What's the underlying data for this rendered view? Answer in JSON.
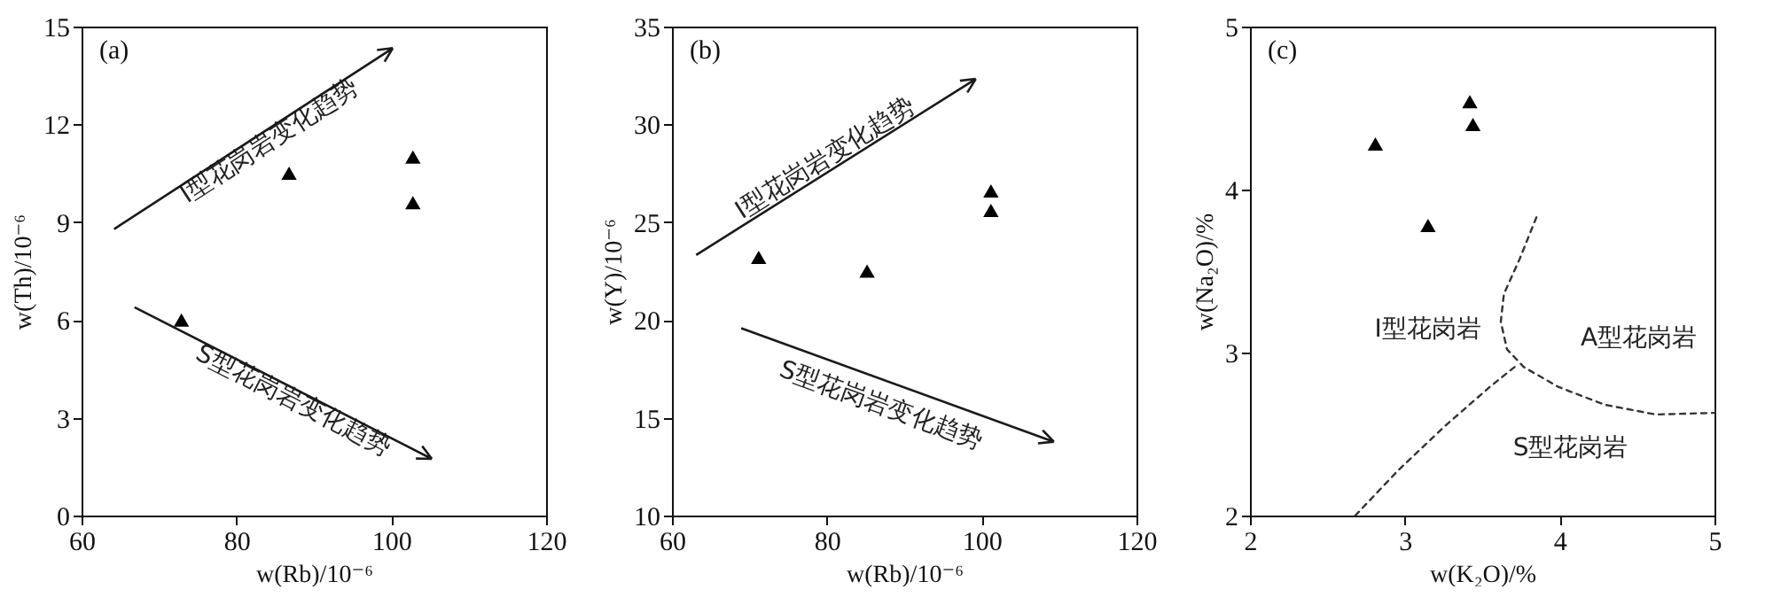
{
  "chart_data": [
    {
      "type": "scatter",
      "marker": "triangle",
      "xlabel": "w(Rb)/10⁻⁶",
      "ylabel": "w(Th)/10⁻⁶",
      "xlim": [
        60,
        120
      ],
      "ylim": [
        0,
        15
      ],
      "xticks": [
        60,
        80,
        100,
        120
      ],
      "yticks": [
        0,
        3,
        6,
        9,
        12,
        15
      ],
      "annotations": [
        "(a)",
        "I型花岗岩变化趋势",
        "S型花岗岩变化趋势"
      ],
      "series": [
        {
          "color": "#000000",
          "x": [
            72.9,
            86.8,
            102.8,
            102.8
          ],
          "values": [
            6.0,
            10.5,
            11.0,
            9.6
          ]
        }
      ]
    },
    {
      "type": "scatter",
      "marker": "triangle",
      "xlabel": "w(Rb)/10⁻⁶",
      "ylabel": "w(Y)/10⁻⁶",
      "xlim": [
        60,
        120
      ],
      "ylim": [
        10,
        35
      ],
      "xticks": [
        60,
        80,
        100,
        120
      ],
      "yticks": [
        10,
        15,
        20,
        25,
        30,
        35
      ],
      "annotations": [
        "(b)",
        "I型花岗岩变化趋势",
        "S型花岗岩变化趋势"
      ],
      "series": [
        {
          "color": "#000000",
          "x": [
            71.2,
            85.2,
            101.2,
            101.2
          ],
          "values": [
            23.2,
            22.5,
            26.6,
            25.6
          ]
        }
      ]
    },
    {
      "type": "scatter",
      "marker": "triangle",
      "xlabel": "w(K₂O)/%",
      "ylabel": "w(Na₂O)/%",
      "xlim": [
        2,
        5
      ],
      "ylim": [
        2,
        5
      ],
      "xticks": [
        2,
        3,
        4,
        5
      ],
      "yticks": [
        2,
        3,
        4,
        5
      ],
      "annotations": [
        "(c)",
        "I型花岗岩",
        "A型花岗岩",
        "S型花岗岩"
      ],
      "series": [
        {
          "color": "#000000",
          "x": [
            2.81,
            3.42,
            3.44,
            3.15
          ],
          "values": [
            4.28,
            4.54,
            4.4,
            3.78
          ]
        },
        {
          "type": "line",
          "marker": "none",
          "line_style": "dashed",
          "color": "#333333",
          "x": [
            3.85,
            3.74,
            3.64,
            3.62,
            3.66,
            3.77,
            3.99,
            4.29,
            4.62,
            5.0
          ],
          "values": [
            3.83,
            3.57,
            3.36,
            3.19,
            3.02,
            2.91,
            2.79,
            2.68,
            2.62,
            2.63
          ]
        },
        {
          "type": "line",
          "marker": "none",
          "line_style": "dashed",
          "color": "#333333",
          "x": [
            2.68,
            2.96,
            3.26,
            3.55,
            3.72
          ],
          "values": [
            2.0,
            2.28,
            2.55,
            2.79,
            2.92
          ]
        }
      ]
    }
  ]
}
